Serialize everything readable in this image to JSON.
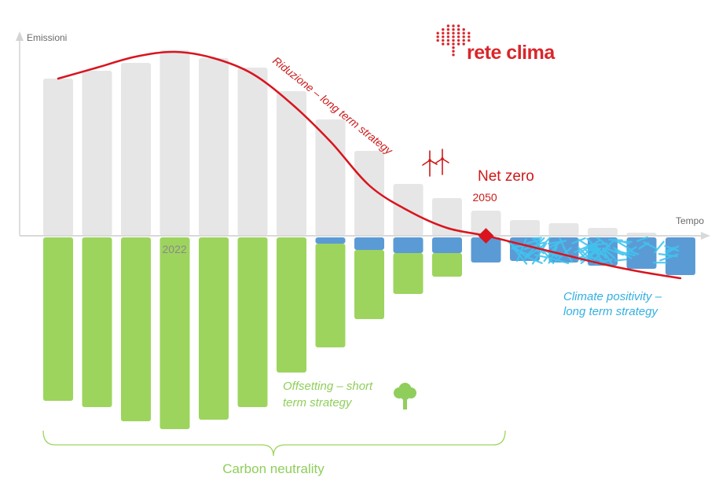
{
  "chart_data": {
    "type": "bar",
    "title": "",
    "xlabel": "Tempo",
    "ylabel": "Emissioni",
    "tick_labels": [
      {
        "category_index": 3,
        "text": "2022"
      },
      {
        "category_index": 11,
        "text": "2050"
      }
    ],
    "categories": [
      "",
      "",
      "",
      "",
      "",
      "",
      "",
      "",
      "",
      "",
      "",
      "",
      "",
      "",
      "",
      "",
      ""
    ],
    "series": [
      {
        "key": "emissions",
        "values": [
          100,
          105,
          110,
          118,
          113,
          107,
          92,
          74,
          54,
          33,
          24,
          16,
          10,
          8,
          5,
          2,
          0
        ]
      },
      {
        "key": "offset_green",
        "values": [
          -104,
          -108,
          -117,
          -122,
          -116,
          -108,
          -86,
          -70,
          -52,
          -36,
          -25,
          -11,
          0,
          0,
          0,
          0,
          0
        ]
      },
      {
        "key": "offset_blue",
        "values": [
          0,
          0,
          0,
          0,
          0,
          0,
          0,
          -4,
          -8,
          -10,
          -10,
          -16,
          -15,
          -16,
          -18,
          -20,
          -24
        ]
      }
    ],
    "reduction_curve": [
      {
        "x": 0,
        "y": 100
      },
      {
        "x": 1,
        "y": 107
      },
      {
        "x": 2,
        "y": 114
      },
      {
        "x": 3,
        "y": 117
      },
      {
        "x": 4,
        "y": 113
      },
      {
        "x": 5,
        "y": 103
      },
      {
        "x": 6,
        "y": 84
      },
      {
        "x": 7,
        "y": 60
      },
      {
        "x": 8,
        "y": 32
      },
      {
        "x": 9,
        "y": 16
      },
      {
        "x": 10,
        "y": 5
      },
      {
        "x": 11,
        "y": 0
      },
      {
        "x": 12,
        "y": -6
      },
      {
        "x": 13,
        "y": -12
      },
      {
        "x": 14,
        "y": -18
      },
      {
        "x": 15,
        "y": -23
      },
      {
        "x": 16,
        "y": -27
      }
    ],
    "net_zero_point": {
      "x": 11,
      "y": 0
    },
    "ylim": [
      -125,
      128
    ],
    "grid": false,
    "legend": "none",
    "colors": {
      "emissions": "#e6e6e6",
      "offset_green": "#9dd45e",
      "offset_blue": "#5b9bd5",
      "reduction_line": "#d9141e",
      "scribble": "#3fc4f0",
      "bracket": "#9dd45e",
      "axis": "#d9d9d9"
    }
  },
  "annotations": {
    "reduction": "Riduzione – long term strategy",
    "net_zero": "Net zero",
    "offsetting_line1": "Offsetting – short",
    "offsetting_line2": "term strategy",
    "positivity_line1": "Climate positivity –",
    "positivity_line2": "long term strategy",
    "carbon_neutrality": "Carbon neutrality"
  },
  "icons": {
    "wind": "wind-turbine-icon",
    "tree": "tree-icon"
  },
  "logo": {
    "text": "rete clima",
    "color": "#d9262a"
  }
}
